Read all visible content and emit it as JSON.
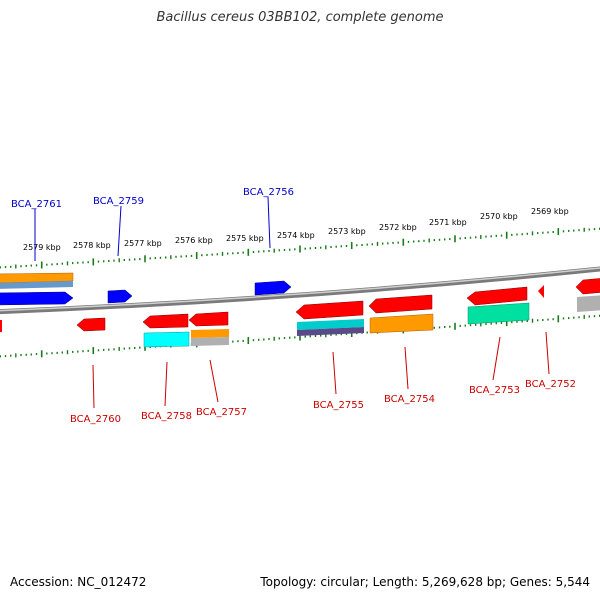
{
  "title": "Bacillus cereus 03BB102, complete genome",
  "footer": {
    "accession": "Accession: NC_012472",
    "topology": "Topology: circular; Length: 5,269,628 bp; Genes: 5,544"
  },
  "kbp_labels": [
    "2579 kbp",
    "2578 kbp",
    "2577 kbp",
    "2576 kbp",
    "2575 kbp",
    "2574 kbp",
    "2573 kbp",
    "2572 kbp",
    "2571 kbp",
    "2570 kbp",
    "2569 kbp"
  ],
  "gene_labels_forward": [
    "BCA_2761",
    "BCA_2759",
    "BCA_2756"
  ],
  "gene_labels_reverse": [
    "BCA_2760",
    "BCA_2758",
    "BCA_2757",
    "BCA_2755",
    "BCA_2754",
    "BCA_2753",
    "BCA_2752"
  ],
  "colors": {
    "forward_label": "#0000cc",
    "reverse_label": "#cc0000",
    "forward_gene": "#0000ff",
    "reverse_gene": "#ff0000",
    "orange": "#ff9900",
    "cyan": "#00ffff",
    "teal": "#00e0a0",
    "gray": "#b0b0b0",
    "scale_tick": "#1a7a1a",
    "backbone": "#888888"
  }
}
